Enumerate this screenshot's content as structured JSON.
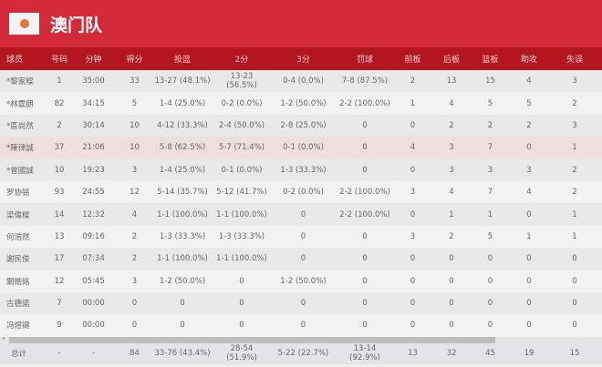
{
  "team": {
    "name": "澳门队",
    "logo_icon": "team-logo-icon"
  },
  "columns": [
    "球员",
    "号码",
    "分钟",
    "得分",
    "投篮",
    "2分",
    "3分",
    "罚球",
    "前板",
    "后板",
    "篮板",
    "助攻",
    "失误"
  ],
  "rows": [
    [
      "*黎家樑",
      "1",
      "35:00",
      "33",
      "13-27 (48.1%)",
      "13-23 (56.5%)",
      "0-4 (0.0%)",
      "7-8 (87.5%)",
      "2",
      "13",
      "15",
      "4",
      "3"
    ],
    [
      "*林霆朗",
      "82",
      "34:15",
      "5",
      "1-4 (25.0%)",
      "0-2 (0.0%)",
      "1-2 (50.0%)",
      "2-2 (100.0%)",
      "1",
      "4",
      "5",
      "5",
      "2"
    ],
    [
      "*區尚然",
      "2",
      "30:14",
      "10",
      "4-12 (33.3%)",
      "2-4 (50.0%)",
      "2-8 (25.0%)",
      "0",
      "0",
      "2",
      "2",
      "2",
      "3"
    ],
    [
      "*陳律誠",
      "37",
      "21:06",
      "10",
      "5-8 (62.5%)",
      "5-7 (71.4%)",
      "0-1 (0.0%)",
      "0",
      "4",
      "3",
      "7",
      "0",
      "1"
    ],
    [
      "*曾國誠",
      "10",
      "19:23",
      "3",
      "1-4 (25.0%)",
      "0-1 (0.0%)",
      "1-3 (33.3%)",
      "0",
      "0",
      "3",
      "3",
      "3",
      "2"
    ],
    [
      "罗协铭",
      "93",
      "24:55",
      "12",
      "5-14 (35.7%)",
      "5-12 (41.7%)",
      "0-2 (0.0%)",
      "2-2 (100.0%)",
      "3",
      "4",
      "7",
      "4",
      "2"
    ],
    [
      "梁偉樑",
      "14",
      "12:32",
      "4",
      "1-1 (100.0%)",
      "1-1 (100.0%)",
      "0",
      "2-2 (100.0%)",
      "0",
      "1",
      "1",
      "0",
      "1"
    ],
    [
      "何浩然",
      "13",
      "09:16",
      "2",
      "1-3 (33.3%)",
      "1-3 (33.3%)",
      "0",
      "0",
      "3",
      "2",
      "5",
      "1",
      "1"
    ],
    [
      "謝民俊",
      "17",
      "07:34",
      "2",
      "1-1 (100.0%)",
      "1-1 (100.0%)",
      "0",
      "0",
      "0",
      "0",
      "0",
      "0",
      "0"
    ],
    [
      "關皓銘",
      "12",
      "05:45",
      "3",
      "1-2 (50.0%)",
      "0",
      "1-2 (50.0%)",
      "0",
      "0",
      "0",
      "0",
      "0",
      "0"
    ],
    [
      "古德諾",
      "7",
      "00:00",
      "0",
      "0",
      "0",
      "0",
      "0",
      "0",
      "0",
      "0",
      "0",
      "0"
    ],
    [
      "冯煜键",
      "9",
      "00:00",
      "0",
      "0",
      "0",
      "0",
      "0",
      "0",
      "0",
      "0",
      "0",
      "0"
    ]
  ],
  "highlighted_row": 3,
  "totals": [
    "总计",
    "-",
    "-",
    "84",
    "33-76 (43.4%)",
    "28-54 (51.9%)",
    "5-22 (22.7%)",
    "13-14 (92.9%)",
    "13",
    "32",
    "45",
    "19",
    "15"
  ],
  "scrollbar_position_percent": 0,
  "colors": {
    "header": "#d32a3a",
    "table_header": "#b3161f",
    "highlight": "#efdedf"
  }
}
